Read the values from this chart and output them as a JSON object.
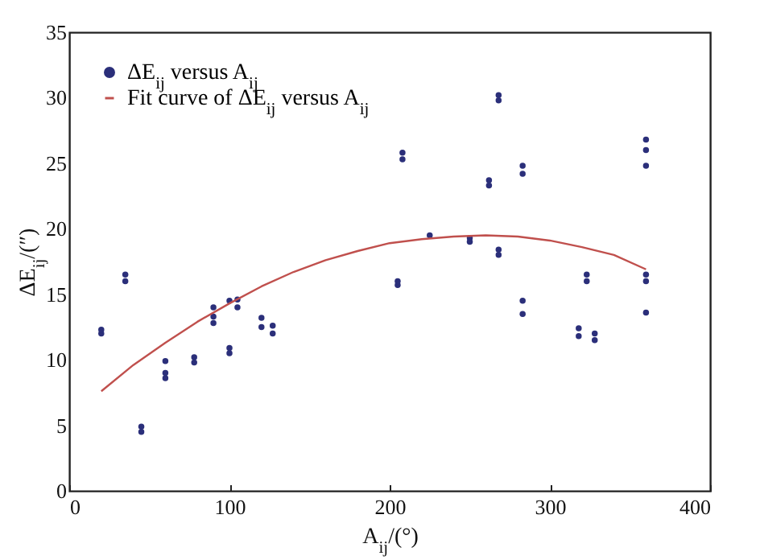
{
  "chart_data": {
    "type": "scatter",
    "xlabel": "A$_{ij}$/(°)",
    "ylabel": "ΔE$_{ij}$/(″)",
    "xlim": [
      0,
      400
    ],
    "xticks": [
      0,
      100,
      200,
      300,
      400
    ],
    "ylim": [
      0,
      35
    ],
    "yticks": [
      0,
      5,
      10,
      15,
      20,
      25,
      30,
      35
    ],
    "grid": false,
    "legend": "top left",
    "series": [
      {
        "name": "ΔE$_{ij}$ versus A$_{ij}$",
        "marker": "circle",
        "color": "#2b2f7a",
        "x": [
          20,
          20,
          35,
          35,
          45,
          45,
          60,
          60,
          60,
          78,
          78,
          90,
          90,
          90,
          100,
          100,
          100,
          105,
          105,
          120,
          120,
          127,
          127,
          205,
          205,
          208,
          208,
          225,
          250,
          250,
          262,
          262,
          268,
          268,
          268,
          268,
          283,
          283,
          283,
          283,
          318,
          318,
          323,
          323,
          328,
          328,
          360,
          360,
          360,
          360,
          360,
          360
        ],
        "values": [
          12.0,
          12.3,
          16.0,
          16.5,
          4.5,
          4.9,
          8.6,
          9.0,
          9.9,
          9.8,
          10.2,
          12.8,
          13.3,
          14.0,
          10.5,
          10.9,
          14.5,
          14.0,
          14.6,
          12.5,
          13.2,
          12.0,
          12.6,
          15.7,
          16.0,
          25.3,
          25.8,
          19.5,
          19.0,
          19.3,
          23.3,
          23.7,
          29.8,
          30.2,
          18.0,
          18.4,
          24.2,
          24.8,
          13.5,
          14.5,
          11.8,
          12.4,
          16.0,
          16.5,
          11.5,
          12.0,
          13.6,
          16.0,
          16.5,
          24.8,
          26.0,
          26.8
        ]
      },
      {
        "name": "Fit curve of ΔE$_{ij}$ versus A$_{ij}$",
        "type": "line",
        "color": "#c0504d",
        "line_style": "solid",
        "x": [
          20,
          40,
          60,
          80,
          100,
          120,
          140,
          160,
          180,
          200,
          220,
          240,
          260,
          280,
          300,
          320,
          340,
          360
        ],
        "values": [
          7.6,
          9.6,
          11.3,
          12.9,
          14.3,
          15.6,
          16.7,
          17.6,
          18.3,
          18.9,
          19.2,
          19.4,
          19.5,
          19.4,
          19.1,
          18.6,
          18.0,
          16.9
        ]
      }
    ]
  }
}
